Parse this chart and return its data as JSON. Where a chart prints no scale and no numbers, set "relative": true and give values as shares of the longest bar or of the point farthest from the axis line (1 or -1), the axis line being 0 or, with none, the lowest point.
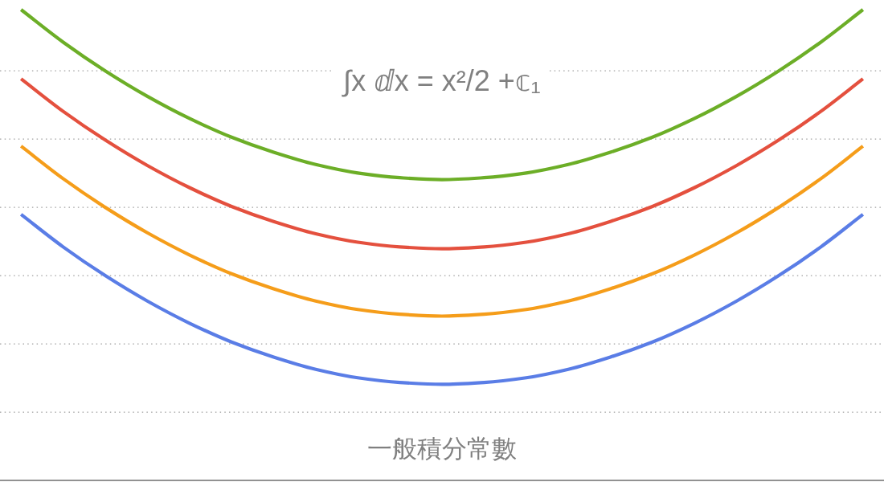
{
  "chart_data": {
    "type": "line",
    "relative": true,
    "title": "∫x ⅆx = x²/2 +𝕔₁",
    "xlabel": "一般積分常數",
    "line_style": "solid",
    "marker": "none",
    "categories": [
      null,
      null,
      null,
      null,
      null,
      null,
      null,
      null,
      null,
      null,
      null,
      null,
      null,
      null,
      null,
      null,
      null,
      null,
      null,
      null,
      null
    ],
    "series": [
      {
        "color": "#5a7de6",
        "values": [
          0.565,
          0.496,
          0.435,
          0.381,
          0.334,
          0.294,
          0.262,
          0.236,
          0.218,
          0.208,
          0.204,
          0.208,
          0.218,
          0.236,
          0.262,
          0.294,
          0.334,
          0.381,
          0.435,
          0.496,
          0.565
        ]
      },
      {
        "color": "#f59d1a",
        "values": [
          0.71,
          0.641,
          0.58,
          0.526,
          0.479,
          0.439,
          0.407,
          0.381,
          0.363,
          0.353,
          0.349,
          0.353,
          0.363,
          0.381,
          0.407,
          0.439,
          0.479,
          0.526,
          0.58,
          0.641,
          0.71
        ]
      },
      {
        "color": "#e4503e",
        "values": [
          0.853,
          0.784,
          0.723,
          0.669,
          0.622,
          0.582,
          0.55,
          0.524,
          0.506,
          0.496,
          0.492,
          0.496,
          0.506,
          0.524,
          0.55,
          0.582,
          0.622,
          0.669,
          0.723,
          0.784,
          0.853
        ]
      },
      {
        "color": "#6cae27",
        "values": [
          1.0,
          0.931,
          0.87,
          0.816,
          0.769,
          0.729,
          0.697,
          0.671,
          0.653,
          0.643,
          0.639,
          0.643,
          0.653,
          0.671,
          0.697,
          0.729,
          0.769,
          0.816,
          0.87,
          0.931,
          1.0
        ]
      }
    ],
    "ref_lines": [
      {
        "axis": "y",
        "value": 0.145,
        "color": "#a0a0a0",
        "line_style": "dotted"
      },
      {
        "axis": "y",
        "value": 0.29,
        "color": "#a0a0a0",
        "line_style": "dotted"
      },
      {
        "axis": "y",
        "value": 0.435,
        "color": "#a0a0a0",
        "line_style": "dotted"
      },
      {
        "axis": "y",
        "value": 0.58,
        "color": "#a0a0a0",
        "line_style": "dotted"
      },
      {
        "axis": "y",
        "value": 0.725,
        "color": "#a0a0a0",
        "line_style": "dotted"
      },
      {
        "axis": "y",
        "value": 0.87,
        "color": "#a0a0a0",
        "line_style": "dotted"
      }
    ]
  }
}
